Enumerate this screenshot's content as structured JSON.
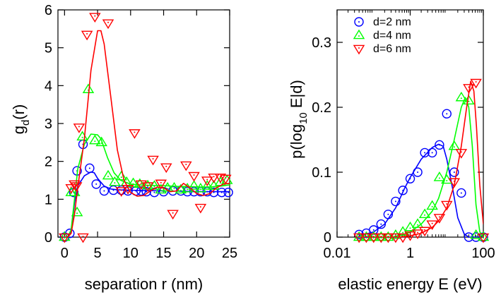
{
  "colors": {
    "d2": "#0000ff",
    "d4": "#00ff00",
    "d6": "#ff0000",
    "axis": "#000000"
  },
  "chart_data": [
    {
      "type": "scatter",
      "panel": "left",
      "xlabel": "separation r (nm)",
      "ylabel": "g",
      "ylabel_sub": "d",
      "ylabel_tail": "(r)",
      "xlim": [
        -1,
        25
      ],
      "ylim": [
        0,
        6
      ],
      "xticks": [
        0,
        5,
        10,
        15,
        20,
        25
      ],
      "yticks": [
        0,
        1,
        2,
        3,
        4,
        5,
        6
      ],
      "legend": "none",
      "grid": false,
      "series": [
        {
          "key": "d2",
          "marker": "circle",
          "points": [
            [
              0,
              0
            ],
            [
              0.8,
              0.1
            ],
            [
              1.4,
              1.18
            ],
            [
              1.9,
              1.75
            ],
            [
              2.8,
              2.45
            ],
            [
              3.8,
              1.82
            ],
            [
              4.8,
              1.4
            ],
            [
              6,
              1.22
            ],
            [
              7.4,
              1.24
            ],
            [
              8.6,
              1.24
            ],
            [
              9.6,
              1.22
            ],
            [
              10.8,
              1.22
            ],
            [
              11.6,
              1.22
            ],
            [
              12.4,
              1.2
            ],
            [
              13.6,
              1.18
            ],
            [
              15,
              1.2
            ],
            [
              16.4,
              1.22
            ],
            [
              17.6,
              1.22
            ],
            [
              18.6,
              1.2
            ],
            [
              19.6,
              1.2
            ],
            [
              20.6,
              1.2
            ],
            [
              21.6,
              1.2
            ],
            [
              22.6,
              1.18
            ],
            [
              23.8,
              1.18
            ],
            [
              24.8,
              1.18
            ]
          ],
          "curve": [
            [
              0,
              0
            ],
            [
              0.5,
              0
            ],
            [
              1,
              0.15
            ],
            [
              1.5,
              0.9
            ],
            [
              2,
              1.35
            ],
            [
              3,
              1.62
            ],
            [
              4,
              1.72
            ],
            [
              4.5,
              1.7
            ],
            [
              5,
              1.55
            ],
            [
              6,
              1.35
            ],
            [
              7,
              1.27
            ],
            [
              8,
              1.25
            ],
            [
              10,
              1.24
            ],
            [
              12,
              1.23
            ],
            [
              15,
              1.22
            ],
            [
              18,
              1.21
            ],
            [
              21,
              1.2
            ],
            [
              24,
              1.2
            ],
            [
              25,
              1.2
            ]
          ]
        },
        {
          "key": "d4",
          "marker": "triangle-up",
          "points": [
            [
              0,
              0
            ],
            [
              1,
              1.18
            ],
            [
              1.5,
              1.18
            ],
            [
              1.9,
              0.65
            ],
            [
              2.7,
              2.65
            ],
            [
              3.6,
              3.9
            ],
            [
              4.6,
              2.55
            ],
            [
              5.6,
              2.5
            ],
            [
              6.6,
              1.62
            ],
            [
              7.6,
              1.45
            ],
            [
              8.6,
              1.6
            ],
            [
              9.4,
              1.45
            ],
            [
              10.4,
              1.42
            ],
            [
              11.4,
              1.4
            ],
            [
              12.6,
              1.36
            ],
            [
              13.6,
              1.35
            ],
            [
              14.6,
              1.25
            ],
            [
              15.6,
              1.3
            ],
            [
              16.6,
              1.3
            ],
            [
              17.6,
              1.25
            ],
            [
              18.6,
              1.28
            ],
            [
              19.6,
              1.35
            ],
            [
              20.6,
              1.28
            ],
            [
              21.6,
              1.35
            ],
            [
              22.6,
              1.35
            ],
            [
              23.6,
              1.45
            ],
            [
              24.6,
              1.5
            ]
          ],
          "curve": [
            [
              0,
              0
            ],
            [
              0.5,
              0
            ],
            [
              1,
              0.2
            ],
            [
              1.5,
              1
            ],
            [
              2,
              1.8
            ],
            [
              3,
              2.45
            ],
            [
              4,
              2.72
            ],
            [
              5,
              2.7
            ],
            [
              5.5,
              2.6
            ],
            [
              6.5,
              2.1
            ],
            [
              7.5,
              1.7
            ],
            [
              8.5,
              1.5
            ],
            [
              10,
              1.4
            ],
            [
              12,
              1.37
            ],
            [
              15,
              1.36
            ],
            [
              17,
              1.34
            ],
            [
              19,
              1.33
            ],
            [
              21,
              1.32
            ],
            [
              23,
              1.33
            ],
            [
              25,
              1.38
            ]
          ]
        },
        {
          "key": "d6",
          "marker": "triangle-down",
          "points": [
            [
              0,
              0
            ],
            [
              1,
              1.3
            ],
            [
              1.5,
              1.4
            ],
            [
              1.8,
              1.35
            ],
            [
              2.2,
              2.9
            ],
            [
              2.8,
              0
            ],
            [
              3.4,
              5.35
            ],
            [
              4.6,
              5.82
            ],
            [
              6.6,
              5.65
            ],
            [
              8.6,
              1.22
            ],
            [
              9.6,
              1.28
            ],
            [
              10.6,
              2.75
            ],
            [
              11.6,
              1.4
            ],
            [
              12.6,
              1.35
            ],
            [
              13.4,
              2.05
            ],
            [
              14.6,
              1.42
            ],
            [
              15.4,
              1.85
            ],
            [
              16.4,
              0.62
            ],
            [
              18.4,
              1.9
            ],
            [
              19.6,
              1.62
            ],
            [
              20.6,
              0.78
            ],
            [
              21.6,
              1.5
            ],
            [
              22.6,
              1.58
            ],
            [
              23.6,
              1.58
            ],
            [
              24.4,
              1.55
            ]
          ],
          "curve": [
            [
              0,
              0
            ],
            [
              0.5,
              0
            ],
            [
              1,
              0.1
            ],
            [
              1.5,
              0.6
            ],
            [
              2,
              1.3
            ],
            [
              3,
              2.6
            ],
            [
              4,
              4.4
            ],
            [
              5,
              5.45
            ],
            [
              5.5,
              5.45
            ],
            [
              6,
              5.1
            ],
            [
              7,
              3.7
            ],
            [
              8,
              2.3
            ],
            [
              9,
              1.5
            ],
            [
              10,
              1.18
            ],
            [
              11,
              1.08
            ],
            [
              12,
              1.1
            ],
            [
              13,
              1.22
            ],
            [
              14,
              1.32
            ],
            [
              15,
              1.3
            ],
            [
              16,
              1.2
            ],
            [
              17,
              1.22
            ],
            [
              18,
              1.42
            ],
            [
              19,
              1.3
            ],
            [
              20,
              1.15
            ],
            [
              21,
              1.1
            ],
            [
              22,
              1.15
            ],
            [
              23,
              1.3
            ],
            [
              24,
              1.4
            ],
            [
              25,
              1.42
            ]
          ]
        }
      ]
    },
    {
      "type": "scatter",
      "panel": "right",
      "xscale": "log",
      "xlabel": "elastic energy E (eV)",
      "ylabel": "p(log",
      "ylabel_sub": "10",
      "ylabel_tail": " E|d)",
      "xlim": [
        0.01,
        100
      ],
      "ylim": [
        0,
        0.35
      ],
      "xticks": [
        0.01,
        1,
        100
      ],
      "xtick_labels": [
        "0.01",
        "1",
        "100"
      ],
      "yticks": [
        0,
        0.1,
        0.2,
        0.3
      ],
      "ytick_labels": [
        "0",
        "0.1",
        "0.2",
        "0.3"
      ],
      "legend": "top-right",
      "grid": false,
      "series": [
        {
          "key": "d2",
          "name": "d=2 nm",
          "marker": "circle",
          "points": [
            [
              0.04,
              0.004
            ],
            [
              0.063,
              0.006
            ],
            [
              0.1,
              0.011
            ],
            [
              0.16,
              0.02
            ],
            [
              0.25,
              0.035
            ],
            [
              0.4,
              0.055
            ],
            [
              0.63,
              0.072
            ],
            [
              1,
              0.09
            ],
            [
              1.6,
              0.1
            ],
            [
              2.5,
              0.13
            ],
            [
              4,
              0.13
            ],
            [
              6.3,
              0.142
            ],
            [
              10,
              0.19
            ],
            [
              16,
              0.1
            ],
            [
              25,
              0.068
            ],
            [
              40,
              0
            ],
            [
              63,
              0
            ],
            [
              100,
              0
            ]
          ],
          "curve": [
            [
              0.04,
              0.002
            ],
            [
              0.1,
              0.008
            ],
            [
              0.2,
              0.02
            ],
            [
              0.4,
              0.045
            ],
            [
              0.7,
              0.075
            ],
            [
              1,
              0.092
            ],
            [
              2,
              0.12
            ],
            [
              4,
              0.138
            ],
            [
              6,
              0.143
            ],
            [
              8,
              0.14
            ],
            [
              10,
              0.12
            ],
            [
              15,
              0.07
            ],
            [
              20,
              0.03
            ],
            [
              30,
              0.005
            ],
            [
              40,
              0
            ],
            [
              100,
              0
            ]
          ]
        },
        {
          "key": "d4",
          "name": "d=4 nm",
          "marker": "triangle-up",
          "points": [
            [
              0.04,
              0
            ],
            [
              0.063,
              0
            ],
            [
              0.1,
              0
            ],
            [
              0.16,
              0
            ],
            [
              0.25,
              0
            ],
            [
              0.4,
              0.003
            ],
            [
              0.63,
              0.008
            ],
            [
              1,
              0.015
            ],
            [
              1.6,
              0.02
            ],
            [
              2.5,
              0.035
            ],
            [
              4,
              0.048
            ],
            [
              6.3,
              0.092
            ],
            [
              10,
              0.088
            ],
            [
              16,
              0.14
            ],
            [
              25,
              0.215
            ],
            [
              40,
              0.21
            ],
            [
              63,
              0.003
            ],
            [
              100,
              0
            ]
          ],
          "curve": [
            [
              0.04,
              0
            ],
            [
              0.3,
              0
            ],
            [
              0.6,
              0.003
            ],
            [
              1,
              0.008
            ],
            [
              2,
              0.02
            ],
            [
              4,
              0.04
            ],
            [
              6,
              0.06
            ],
            [
              10,
              0.1
            ],
            [
              16,
              0.15
            ],
            [
              25,
              0.2
            ],
            [
              32,
              0.215
            ],
            [
              40,
              0.2
            ],
            [
              50,
              0.14
            ],
            [
              63,
              0.05
            ],
            [
              80,
              0.008
            ],
            [
              100,
              0
            ]
          ]
        },
        {
          "key": "d6",
          "name": "d=6 nm",
          "marker": "triangle-down",
          "points": [
            [
              0.04,
              0
            ],
            [
              0.063,
              0
            ],
            [
              0.1,
              0
            ],
            [
              0.16,
              0
            ],
            [
              0.25,
              0
            ],
            [
              0.4,
              0
            ],
            [
              0.63,
              0
            ],
            [
              1,
              0.003
            ],
            [
              1.6,
              0.006
            ],
            [
              2.5,
              0.01
            ],
            [
              4,
              0.02
            ],
            [
              6.3,
              0.03
            ],
            [
              10,
              0.05
            ],
            [
              16,
              0.085
            ],
            [
              25,
              0.13
            ],
            [
              40,
              0.23
            ],
            [
              63,
              0.238
            ],
            [
              100,
              0
            ]
          ],
          "curve": [
            [
              0.04,
              0
            ],
            [
              0.5,
              0
            ],
            [
              1,
              0.002
            ],
            [
              2,
              0.006
            ],
            [
              4,
              0.015
            ],
            [
              6,
              0.025
            ],
            [
              10,
              0.045
            ],
            [
              16,
              0.08
            ],
            [
              25,
              0.14
            ],
            [
              35,
              0.2
            ],
            [
              45,
              0.24
            ],
            [
              55,
              0.225
            ],
            [
              65,
              0.17
            ],
            [
              80,
              0.08
            ],
            [
              100,
              0.02
            ]
          ]
        }
      ]
    }
  ]
}
